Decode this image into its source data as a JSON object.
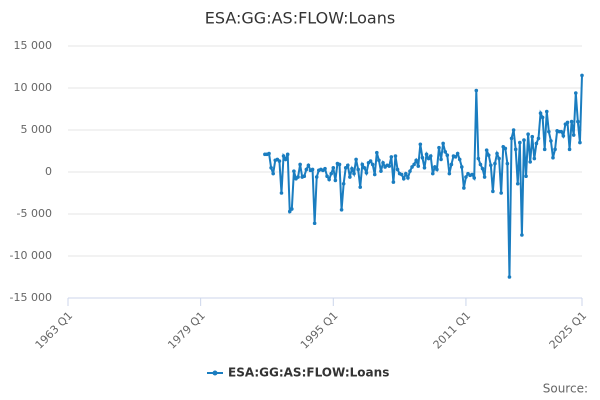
{
  "chart_data": {
    "type": "line",
    "title": "ESA:GG:AS:FLOW:Loans",
    "source": "Source:",
    "x": [
      "1986 Q4",
      "1987 Q1",
      "1987 Q2",
      "1987 Q3",
      "1987 Q4",
      "1988 Q1",
      "1988 Q2",
      "1988 Q3",
      "1988 Q4",
      "1989 Q1",
      "1989 Q2",
      "1989 Q3",
      "1989 Q4",
      "1990 Q1",
      "1990 Q2",
      "1990 Q3",
      "1990 Q4",
      "1991 Q1",
      "1991 Q2",
      "1991 Q3",
      "1991 Q4",
      "1992 Q1",
      "1992 Q2",
      "1992 Q3",
      "1992 Q4",
      "1993 Q1",
      "1993 Q2",
      "1993 Q3",
      "1993 Q4",
      "1994 Q1",
      "1994 Q2",
      "1994 Q3",
      "1994 Q4",
      "1995 Q1",
      "1995 Q2",
      "1995 Q3",
      "1995 Q4",
      "1996 Q1",
      "1996 Q2",
      "1996 Q3",
      "1996 Q4",
      "1997 Q1",
      "1997 Q2",
      "1997 Q3",
      "1997 Q4",
      "1998 Q1",
      "1998 Q2",
      "1998 Q3",
      "1998 Q4",
      "1999 Q1",
      "1999 Q2",
      "1999 Q3",
      "1999 Q4",
      "2000 Q1",
      "2000 Q2",
      "2000 Q3",
      "2000 Q4",
      "2001 Q1",
      "2001 Q2",
      "2001 Q3",
      "2001 Q4",
      "2002 Q1",
      "2002 Q2",
      "2002 Q3",
      "2002 Q4",
      "2003 Q1",
      "2003 Q2",
      "2003 Q3",
      "2003 Q4",
      "2004 Q1",
      "2004 Q2",
      "2004 Q3",
      "2004 Q4",
      "2005 Q1",
      "2005 Q2",
      "2005 Q3",
      "2005 Q4",
      "2006 Q1",
      "2006 Q2",
      "2006 Q3",
      "2006 Q4",
      "2007 Q1",
      "2007 Q2",
      "2007 Q3",
      "2007 Q4",
      "2008 Q1",
      "2008 Q2",
      "2008 Q3",
      "2008 Q4",
      "2009 Q1",
      "2009 Q2",
      "2009 Q3",
      "2009 Q4",
      "2010 Q1",
      "2010 Q2",
      "2010 Q3",
      "2010 Q4",
      "2011 Q1",
      "2011 Q2",
      "2011 Q3",
      "2011 Q4",
      "2012 Q1",
      "2012 Q2",
      "2012 Q3",
      "2012 Q4",
      "2013 Q1",
      "2013 Q2",
      "2013 Q3",
      "2013 Q4",
      "2014 Q1",
      "2014 Q2",
      "2014 Q3",
      "2014 Q4",
      "2015 Q1",
      "2015 Q2",
      "2015 Q3",
      "2015 Q4",
      "2016 Q1",
      "2016 Q2",
      "2016 Q3",
      "2016 Q4",
      "2017 Q1",
      "2017 Q2",
      "2017 Q3",
      "2017 Q4",
      "2018 Q1",
      "2018 Q2",
      "2018 Q3",
      "2018 Q4",
      "2019 Q1",
      "2019 Q2",
      "2019 Q3",
      "2019 Q4",
      "2020 Q1",
      "2020 Q2",
      "2020 Q3",
      "2020 Q4",
      "2021 Q1",
      "2021 Q2",
      "2021 Q3",
      "2021 Q4",
      "2022 Q1",
      "2022 Q2",
      "2022 Q3",
      "2022 Q4",
      "2023 Q1",
      "2023 Q2",
      "2023 Q3",
      "2023 Q4",
      "2024 Q1",
      "2024 Q2",
      "2024 Q3",
      "2024 Q4",
      "2025 Q1"
    ],
    "series": [
      {
        "name": "ESA:GG:AS:FLOW:Loans",
        "color": "#1a7dc0",
        "values": [
          2100,
          2100,
          2200,
          500,
          -200,
          1400,
          1500,
          1300,
          -2500,
          1900,
          1500,
          2100,
          -4700,
          -4400,
          100,
          -800,
          -600,
          900,
          -600,
          -500,
          300,
          800,
          200,
          300,
          -6100,
          -600,
          200,
          300,
          200,
          400,
          -500,
          -900,
          -200,
          500,
          -1000,
          1000,
          900,
          -4500,
          -1400,
          500,
          800,
          -600,
          400,
          -200,
          1500,
          300,
          -1800,
          900,
          500,
          -100,
          1100,
          1300,
          900,
          -300,
          2300,
          1400,
          100,
          1100,
          600,
          800,
          700,
          1800,
          -1200,
          1900,
          300,
          -200,
          -300,
          -800,
          -200,
          -700,
          100,
          600,
          900,
          1400,
          700,
          3300,
          1700,
          500,
          2100,
          1600,
          1900,
          -200,
          600,
          300,
          2900,
          1500,
          3400,
          2400,
          2000,
          -200,
          900,
          1900,
          1800,
          2200,
          1500,
          600,
          -1900,
          -600,
          -200,
          -400,
          -300,
          -700,
          9700,
          1600,
          900,
          400,
          -600,
          2600,
          2000,
          800,
          -2300,
          1000,
          2200,
          1600,
          -2500,
          3000,
          2800,
          1000,
          -12500,
          4000,
          5000,
          2700,
          -1400,
          3500,
          -7500,
          3800,
          -500,
          4500,
          1200,
          4200,
          1600,
          3400,
          4000,
          7000,
          6500,
          2700,
          7200,
          4800,
          3700,
          1700,
          2700,
          4900,
          4800,
          4800,
          4300,
          5700,
          5900,
          2700,
          6000,
          4400,
          9400,
          6000,
          3500,
          11500
        ]
      }
    ],
    "xlim": [
      "1963 Q1",
      "2025 Q1"
    ],
    "xticks": [
      "1963 Q1",
      "1979 Q1",
      "1995 Q1",
      "2011 Q1",
      "2025 Q1"
    ],
    "ylim": [
      -15000,
      15000
    ],
    "yticks": [
      {
        "value": -15000,
        "label": "-15 000"
      },
      {
        "value": -10000,
        "label": "-10 000"
      },
      {
        "value": -5000,
        "label": "-5 000"
      },
      0,
      {
        "value": 5000,
        "label": "5 000"
      },
      {
        "value": 10000,
        "label": "10 000"
      },
      {
        "value": 15000,
        "label": "15 000"
      }
    ],
    "grid": true,
    "legend": "bottom"
  }
}
